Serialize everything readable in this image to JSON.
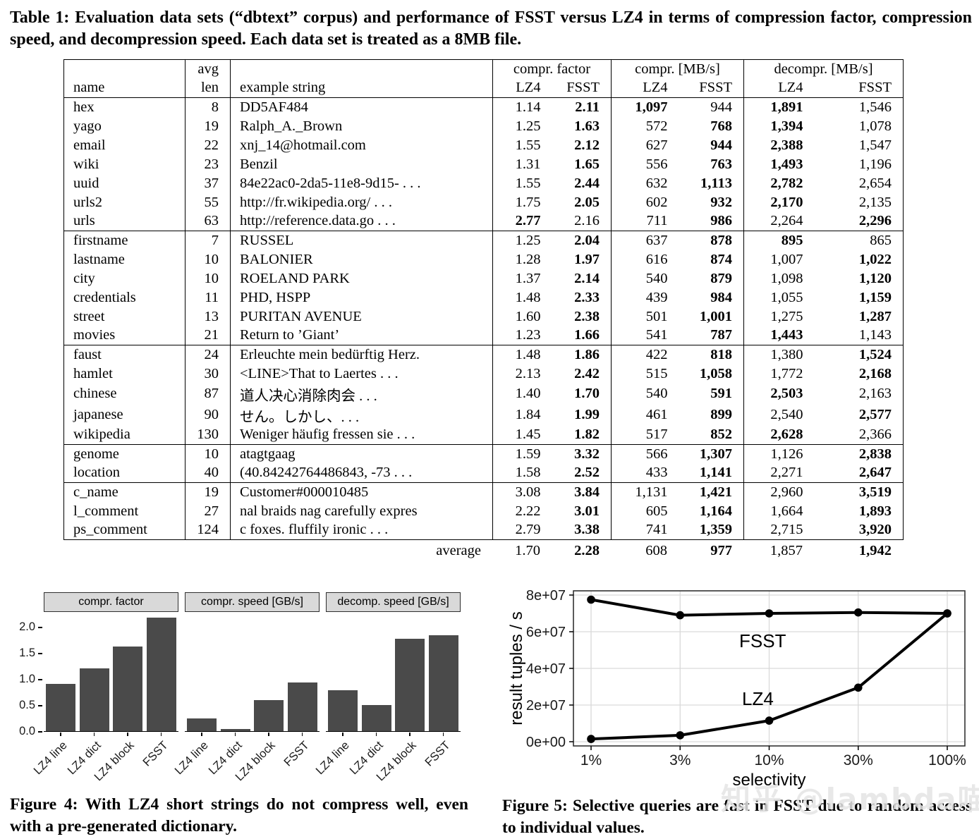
{
  "table_caption": "Table 1: Evaluation data sets (“dbtext” corpus) and performance of FSST versus LZ4 in terms of compression factor, compression speed, and decompression speed. Each data set is treated as a 8MB file.",
  "table": {
    "group_headers": [
      "compr. factor",
      "compr. [MB/s]",
      "decompr. [MB/s]"
    ],
    "sub_headers": {
      "name": "name",
      "avg": "avg",
      "len": "len",
      "example": "example string",
      "lz4": "LZ4",
      "fsst": "FSST"
    },
    "groups": [
      [
        {
          "name": "hex",
          "len": "8",
          "example": "DD5AF484",
          "vals": [
            "1.14",
            "2.11",
            "1,097",
            "944",
            "1,891",
            "1,546"
          ],
          "bold": [
            1,
            2,
            4
          ]
        },
        {
          "name": "yago",
          "len": "19",
          "example": "Ralph_A._Brown",
          "vals": [
            "1.25",
            "1.63",
            "572",
            "768",
            "1,394",
            "1,078"
          ],
          "bold": [
            1,
            3,
            4
          ]
        },
        {
          "name": "email",
          "len": "22",
          "example": "xnj_14@hotmail.com",
          "vals": [
            "1.55",
            "2.12",
            "627",
            "944",
            "2,388",
            "1,547"
          ],
          "bold": [
            1,
            3,
            4
          ]
        },
        {
          "name": "wiki",
          "len": "23",
          "example": "Benzil",
          "vals": [
            "1.31",
            "1.65",
            "556",
            "763",
            "1,493",
            "1,196"
          ],
          "bold": [
            1,
            3,
            4
          ]
        },
        {
          "name": "uuid",
          "len": "37",
          "example": "84e22ac0-2da5-11e8-9d15- . . .",
          "vals": [
            "1.55",
            "2.44",
            "632",
            "1,113",
            "2,782",
            "2,654"
          ],
          "bold": [
            1,
            3,
            4
          ]
        },
        {
          "name": "urls2",
          "len": "55",
          "example": "http://fr.wikipedia.org/ . . .",
          "vals": [
            "1.75",
            "2.05",
            "602",
            "932",
            "2,170",
            "2,135"
          ],
          "bold": [
            1,
            3,
            4
          ]
        },
        {
          "name": "urls",
          "len": "63",
          "example": "http://reference.data.go . . .",
          "vals": [
            "2.77",
            "2.16",
            "711",
            "986",
            "2,264",
            "2,296"
          ],
          "bold": [
            0,
            3,
            5
          ]
        }
      ],
      [
        {
          "name": "firstname",
          "len": "7",
          "example": "RUSSEL",
          "vals": [
            "1.25",
            "2.04",
            "637",
            "878",
            "895",
            "865"
          ],
          "bold": [
            1,
            3,
            4
          ]
        },
        {
          "name": "lastname",
          "len": "10",
          "example": "BALONIER",
          "vals": [
            "1.28",
            "1.97",
            "616",
            "874",
            "1,007",
            "1,022"
          ],
          "bold": [
            1,
            3,
            5
          ]
        },
        {
          "name": "city",
          "len": "10",
          "example": "ROELAND PARK",
          "vals": [
            "1.37",
            "2.14",
            "540",
            "879",
            "1,098",
            "1,120"
          ],
          "bold": [
            1,
            3,
            5
          ]
        },
        {
          "name": "credentials",
          "len": "11",
          "example": "PHD, HSPP",
          "vals": [
            "1.48",
            "2.33",
            "439",
            "984",
            "1,055",
            "1,159"
          ],
          "bold": [
            1,
            3,
            5
          ]
        },
        {
          "name": "street",
          "len": "13",
          "example": "PURITAN AVENUE",
          "vals": [
            "1.60",
            "2.38",
            "501",
            "1,001",
            "1,275",
            "1,287"
          ],
          "bold": [
            1,
            3,
            5
          ]
        },
        {
          "name": "movies",
          "len": "21",
          "example": "Return to ’Giant’",
          "vals": [
            "1.23",
            "1.66",
            "541",
            "787",
            "1,443",
            "1,143"
          ],
          "bold": [
            1,
            3,
            4
          ]
        }
      ],
      [
        {
          "name": "faust",
          "len": "24",
          "example": "Erleuchte mein bedürftig Herz.",
          "vals": [
            "1.48",
            "1.86",
            "422",
            "818",
            "1,380",
            "1,524"
          ],
          "bold": [
            1,
            3,
            5
          ]
        },
        {
          "name": "hamlet",
          "len": "30",
          "example": "<LINE>That to Laertes . . .",
          "vals": [
            "2.13",
            "2.42",
            "515",
            "1,058",
            "1,772",
            "2,168"
          ],
          "bold": [
            1,
            3,
            5
          ]
        },
        {
          "name": "chinese",
          "len": "87",
          "example": "道人决心消除肉会 . . .",
          "vals": [
            "1.40",
            "1.70",
            "540",
            "591",
            "2,503",
            "2,163"
          ],
          "bold": [
            1,
            3,
            4
          ]
        },
        {
          "name": "japanese",
          "len": "90",
          "example": "せん。しかし、. . .",
          "vals": [
            "1.84",
            "1.99",
            "461",
            "899",
            "2,540",
            "2,577"
          ],
          "bold": [
            1,
            3,
            5
          ]
        },
        {
          "name": "wikipedia",
          "len": "130",
          "example": "Weniger häufig fressen sie . . .",
          "vals": [
            "1.45",
            "1.82",
            "517",
            "852",
            "2,628",
            "2,366"
          ],
          "bold": [
            1,
            3,
            4
          ]
        }
      ],
      [
        {
          "name": "genome",
          "len": "10",
          "example": "atagtgaag",
          "vals": [
            "1.59",
            "3.32",
            "566",
            "1,307",
            "1,126",
            "2,838"
          ],
          "bold": [
            1,
            3,
            5
          ]
        },
        {
          "name": "location",
          "len": "40",
          "example": "(40.84242764486843, -73 . . .",
          "vals": [
            "1.58",
            "2.52",
            "433",
            "1,141",
            "2,271",
            "2,647"
          ],
          "bold": [
            1,
            3,
            5
          ]
        }
      ],
      [
        {
          "name": "c_name",
          "len": "19",
          "example": "Customer#000010485",
          "vals": [
            "3.08",
            "3.84",
            "1,131",
            "1,421",
            "2,960",
            "3,519"
          ],
          "bold": [
            1,
            3,
            5
          ]
        },
        {
          "name": "l_comment",
          "len": "27",
          "example": "nal braids nag carefully expres",
          "vals": [
            "2.22",
            "3.01",
            "605",
            "1,164",
            "1,664",
            "1,893"
          ],
          "bold": [
            1,
            3,
            5
          ]
        },
        {
          "name": "ps_comment",
          "len": "124",
          "example": "c foxes. fluffily ironic . . .",
          "vals": [
            "2.79",
            "3.38",
            "741",
            "1,359",
            "2,715",
            "3,920"
          ],
          "bold": [
            1,
            3,
            5
          ]
        }
      ]
    ],
    "average": {
      "label": "average",
      "vals": [
        "1.70",
        "2.28",
        "608",
        "977",
        "1,857",
        "1,942"
      ],
      "bold": [
        1,
        3,
        5
      ]
    }
  },
  "figure4": {
    "caption": "Figure 4: With LZ4 short strings do not compress well, even with a pre-generated dictionary."
  },
  "figure5": {
    "caption": "Figure 5: Selective queries are fast in FSST due to random access to individual values."
  },
  "watermark": "知乎 @lambda喵",
  "chart_data": [
    {
      "type": "bar",
      "figure": "Figure 4",
      "categories": [
        "LZ4 line",
        "LZ4 dict",
        "LZ4 block",
        "FSST"
      ],
      "panels": [
        {
          "title": "compr. factor",
          "values": [
            0.9,
            1.2,
            1.63,
            2.18
          ]
        },
        {
          "title": "compr. speed [GB/s]",
          "values": [
            0.24,
            0.04,
            0.59,
            0.94
          ]
        },
        {
          "title": "decomp. speed [GB/s]",
          "values": [
            0.79,
            0.5,
            1.77,
            1.84
          ]
        }
      ],
      "yticks": [
        0.0,
        0.5,
        1.0,
        1.5,
        2.0
      ],
      "ylim": [
        0,
        2.3
      ],
      "bar_color": "#4a4a4a",
      "grid": false,
      "facet_header_color": "#d9d9d9"
    },
    {
      "type": "line",
      "figure": "Figure 5",
      "x_categories": [
        "1%",
        "3%",
        "10%",
        "30%",
        "100%"
      ],
      "xlabel": "selectivity",
      "ylabel": "result tuples / s",
      "yticks": [
        0,
        20000000,
        40000000,
        60000000,
        80000000
      ],
      "ytick_labels": [
        "0e+00",
        "2e+07",
        "4e+07",
        "6e+07",
        "8e+07"
      ],
      "ylim": [
        0,
        80000000
      ],
      "series": [
        {
          "name": "FSST",
          "values": [
            77500000,
            69000000,
            70000000,
            70500000,
            70000000
          ],
          "label_pos": [
            330,
            92
          ]
        },
        {
          "name": "LZ4",
          "values": [
            1500000,
            3500000,
            11500000,
            29500000,
            70000000
          ],
          "label_pos": [
            334,
            174
          ]
        }
      ],
      "line_color": "#000000",
      "grid": true,
      "legend": "inline-labels"
    }
  ]
}
